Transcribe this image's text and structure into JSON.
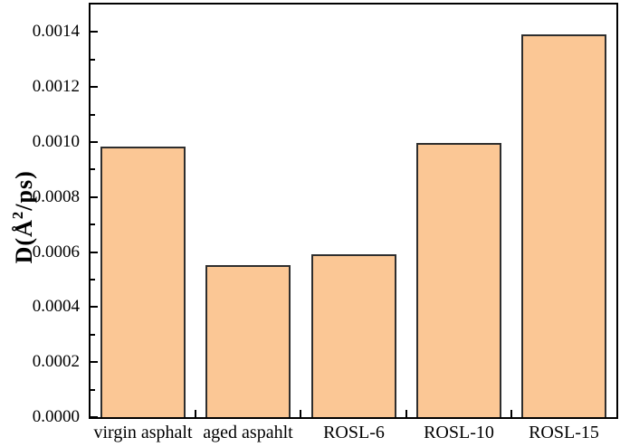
{
  "figure": {
    "background": "#ffffff",
    "axis_color": "#000000"
  },
  "chart_data": {
    "type": "bar",
    "title": "",
    "xlabel": "",
    "ylabel": "D(Å²/ps)",
    "ylabel_rich": {
      "prefix": "D(Å",
      "superscript": "2",
      "suffix": "/ps)"
    },
    "categories": [
      "virgin asphalt",
      "aged aspahlt",
      "ROSL-6",
      "ROSL-10",
      "ROSL-15"
    ],
    "values": [
      0.000985,
      0.000553,
      0.000592,
      0.000998,
      0.001392
    ],
    "ylim": [
      0,
      0.0015
    ],
    "y_major_tick_step": 0.0002,
    "y_minor_tick_step": 0.0001,
    "y_tick_labels": [
      "0.0000",
      "0.0002",
      "0.0004",
      "0.0006",
      "0.0008",
      "0.0010",
      "0.0012",
      "0.0014"
    ],
    "grid": false,
    "legend": null,
    "bar_fill": "#fbc795",
    "bar_border": "#2e2e2e"
  }
}
